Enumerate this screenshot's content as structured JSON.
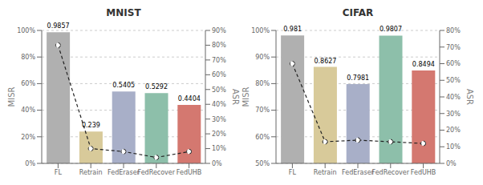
{
  "chart_data": [
    {
      "type": "bar",
      "title": "MNIST",
      "categories": [
        "FL",
        "Retrain",
        "FedEraser",
        "FedRecover",
        "FedUHB"
      ],
      "y_label": "MISR",
      "y2_label": "ASR",
      "ylim": [
        0.0,
        1.0
      ],
      "yticks": [
        {
          "value": 0.0,
          "label": "0%"
        },
        {
          "value": 0.2,
          "label": "20%"
        },
        {
          "value": 0.4,
          "label": "40%"
        },
        {
          "value": 0.6,
          "label": "60%"
        },
        {
          "value": 0.8,
          "label": "80%"
        },
        {
          "value": 1.0,
          "label": "100%"
        }
      ],
      "y2lim": [
        0.0,
        0.9
      ],
      "y2ticks": [
        {
          "value": 0.0,
          "label": "0%"
        },
        {
          "value": 0.1,
          "label": "10%"
        },
        {
          "value": 0.2,
          "label": "20%"
        },
        {
          "value": 0.3,
          "label": "30%"
        },
        {
          "value": 0.4,
          "label": "40%"
        },
        {
          "value": 0.5,
          "label": "50%"
        },
        {
          "value": 0.6,
          "label": "60%"
        },
        {
          "value": 0.7,
          "label": "70%"
        },
        {
          "value": 0.8,
          "label": "80%"
        },
        {
          "value": 0.9,
          "label": "90%"
        }
      ],
      "grid": true,
      "series": [
        {
          "name": "MISR",
          "type": "bar",
          "values": [
            0.9857,
            0.239,
            0.5405,
            0.5292,
            0.4404
          ],
          "colors": [
            "#b0b0b0",
            "#d8ca9a",
            "#a8afc8",
            "#8dbfaa",
            "#d47870"
          ],
          "data_labels": true
        },
        {
          "name": "ASR",
          "type": "line",
          "axis": "y2",
          "values": [
            0.8,
            0.1,
            0.08,
            0.04,
            0.08
          ],
          "color": "#222222",
          "line_style": "dashed",
          "marker": "circle"
        }
      ]
    },
    {
      "type": "bar",
      "title": "CIFAR",
      "categories": [
        "FL",
        "Retrain",
        "FedEraser",
        "FedRecover",
        "FedUHB"
      ],
      "y_label": "MISR",
      "y2_label": "ASR",
      "ylim": [
        0.5,
        1.0
      ],
      "yticks": [
        {
          "value": 0.5,
          "label": "50%"
        },
        {
          "value": 0.6,
          "label": "60%"
        },
        {
          "value": 0.7,
          "label": "70%"
        },
        {
          "value": 0.8,
          "label": "80%"
        },
        {
          "value": 0.9,
          "label": "90%"
        },
        {
          "value": 1.0,
          "label": "100%"
        }
      ],
      "y2lim": [
        0.0,
        0.8
      ],
      "y2ticks": [
        {
          "value": 0.0,
          "label": "0%"
        },
        {
          "value": 0.1,
          "label": "10%"
        },
        {
          "value": 0.2,
          "label": "20%"
        },
        {
          "value": 0.3,
          "label": "30%"
        },
        {
          "value": 0.4,
          "label": "40%"
        },
        {
          "value": 0.5,
          "label": "50%"
        },
        {
          "value": 0.6,
          "label": "60%"
        },
        {
          "value": 0.7,
          "label": "70%"
        },
        {
          "value": 0.8,
          "label": "80%"
        }
      ],
      "grid": true,
      "series": [
        {
          "name": "MISR",
          "type": "bar",
          "values": [
            0.981,
            0.8627,
            0.7981,
            0.9807,
            0.8494
          ],
          "colors": [
            "#b0b0b0",
            "#d8ca9a",
            "#a8afc8",
            "#8dbfaa",
            "#d47870"
          ],
          "data_labels": true
        },
        {
          "name": "ASR",
          "type": "line",
          "axis": "y2",
          "values": [
            0.6,
            0.13,
            0.14,
            0.13,
            0.12
          ],
          "color": "#222222",
          "line_style": "dashed",
          "marker": "circle"
        }
      ]
    }
  ]
}
